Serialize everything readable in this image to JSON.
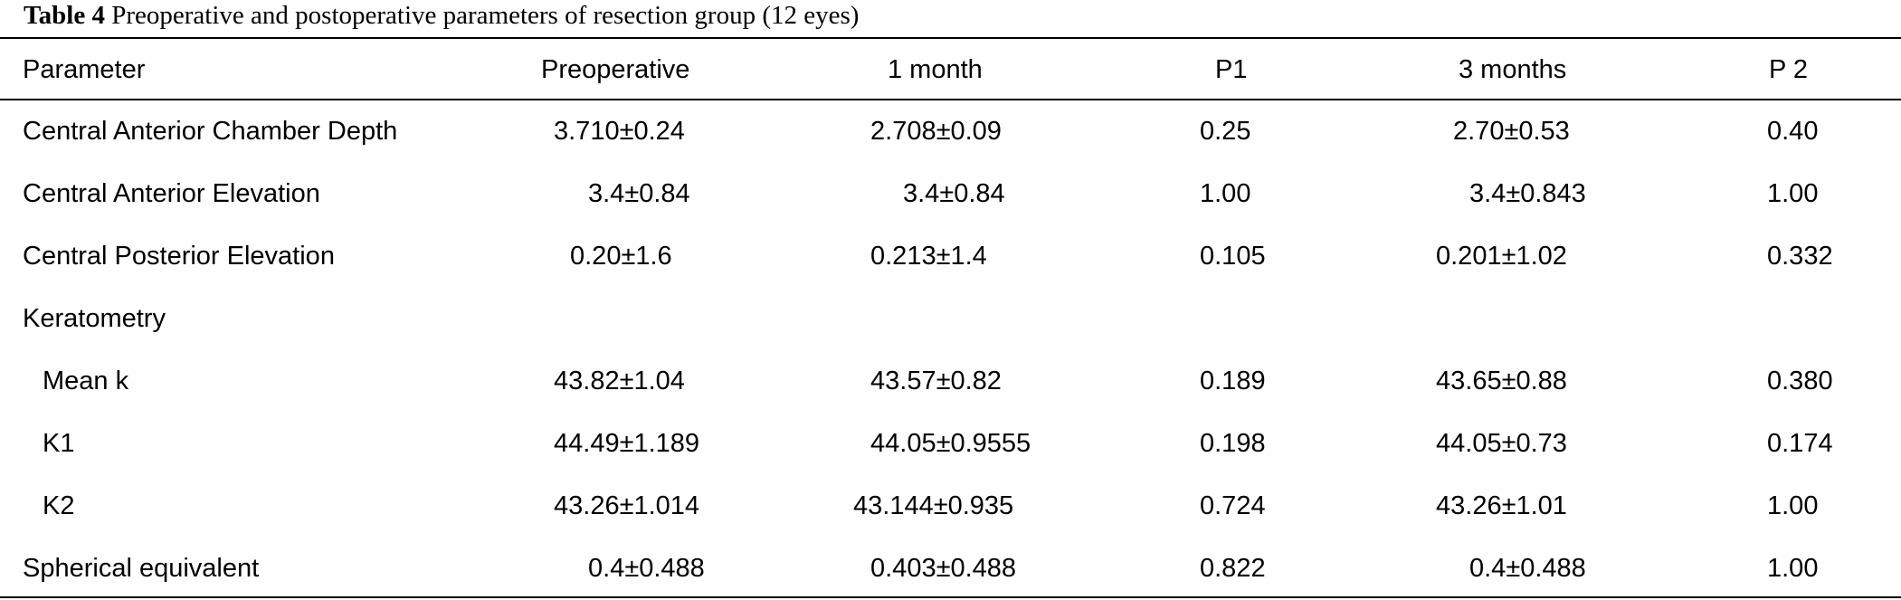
{
  "caption": {
    "label": "Table 4",
    "text": "Preoperative and postoperative parameters of resection group (12 eyes)"
  },
  "headers": [
    "Parameter",
    "Preoperative",
    "1 month",
    "P1",
    "3 months",
    "P 2"
  ],
  "rows": [
    {
      "param": "Central Anterior Chamber Depth",
      "pre": "3.710±0.24",
      "m1": "2.708±0.09",
      "p1": "0.25",
      "m3": "2.70±0.53",
      "p2": "0.40"
    },
    {
      "param": "Central Anterior Elevation",
      "pre": "3.4±0.84",
      "m1": "3.4±0.84",
      "p1": "1.00",
      "m3": "3.4±0.843",
      "p2": "1.00"
    },
    {
      "param": "Central Posterior Elevation",
      "pre": "0.20±1.6",
      "m1": "0.213±1.4",
      "p1": "0.105",
      "m3": "0.201±1.02",
      "p2": "0.332"
    },
    {
      "param": "Keratometry",
      "pre": "",
      "m1": "",
      "p1": "",
      "m3": "",
      "p2": ""
    },
    {
      "param": "Mean k",
      "pre": "43.82±1.04",
      "m1": "43.57±0.82",
      "p1": "0.189",
      "m3": "43.65±0.88",
      "p2": "0.380"
    },
    {
      "param": "K1",
      "pre": "44.49±1.189",
      "m1": "44.05±0.9555",
      "p1": "0.198",
      "m3": "44.05±0.73",
      "p2": "0.174"
    },
    {
      "param": "K2",
      "pre": "43.26±1.014",
      "m1": "43.144±0.935",
      "p1": "0.724",
      "m3": "43.26±1.01",
      "p2": "1.00"
    },
    {
      "param": "Spherical equivalent",
      "pre": "0.4±0.488",
      "m1": "0.403±0.488",
      "p1": "0.822",
      "m3": "0.4±0.488",
      "p2": "1.00"
    }
  ]
}
